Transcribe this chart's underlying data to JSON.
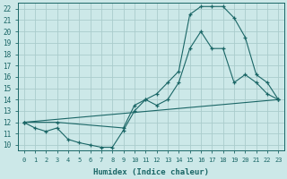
{
  "xlabel": "Humidex (Indice chaleur)",
  "bg_color": "#cce8e8",
  "grid_color": "#aacccc",
  "line_color": "#1a6666",
  "xlim": [
    -0.5,
    23.5
  ],
  "ylim": [
    9.5,
    22.5
  ],
  "yticks": [
    10,
    11,
    12,
    13,
    14,
    15,
    16,
    17,
    18,
    19,
    20,
    21,
    22
  ],
  "xticks": [
    0,
    1,
    2,
    3,
    4,
    5,
    6,
    7,
    8,
    9,
    10,
    11,
    12,
    13,
    14,
    15,
    16,
    17,
    18,
    19,
    20,
    21,
    22,
    23
  ],
  "line1_x": [
    0,
    1,
    2,
    3,
    4,
    5,
    6,
    7,
    8,
    9,
    10,
    11,
    12,
    13,
    14,
    15,
    16,
    17,
    18,
    19,
    20,
    21,
    22,
    23
  ],
  "line1_y": [
    12,
    11.5,
    11.2,
    11.5,
    10.5,
    10.2,
    10.0,
    9.8,
    9.8,
    11.3,
    13.0,
    14.0,
    13.5,
    14.0,
    15.5,
    18.5,
    20.0,
    18.5,
    18.5,
    15.5,
    16.2,
    15.5,
    14.5,
    14.0
  ],
  "line2_x": [
    0,
    3,
    9,
    10,
    11,
    12,
    13,
    14,
    15,
    16,
    17,
    18,
    19,
    20,
    21,
    22,
    23
  ],
  "line2_y": [
    12,
    12.0,
    11.5,
    13.5,
    14.0,
    14.5,
    15.5,
    16.5,
    21.5,
    22.2,
    22.2,
    22.2,
    21.2,
    19.5,
    16.2,
    15.5,
    14.0
  ],
  "line3_x": [
    0,
    23
  ],
  "line3_y": [
    12,
    14.0
  ]
}
